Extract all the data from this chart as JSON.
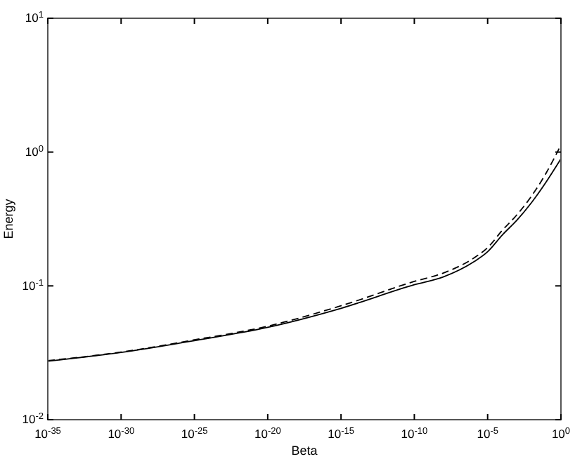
{
  "chart_data": {
    "type": "line",
    "xlabel": "Beta",
    "ylabel": "Energy",
    "log": "xy",
    "grid": false,
    "marker": "none",
    "x": [
      1e-35,
      1e-30,
      1e-25,
      1e-20,
      1e-15,
      1e-10,
      1e-08,
      1e-06,
      1e-05,
      0.0001,
      0.001,
      0.01,
      0.1,
      1
    ],
    "series": [
      {
        "color": "#000000",
        "line_style": "solid",
        "values": [
          0.0274,
          0.0318,
          0.039,
          0.049,
          0.068,
          0.102,
          0.117,
          0.15,
          0.18,
          0.24,
          0.31,
          0.42,
          0.6,
          0.89
        ]
      },
      {
        "color": "#000000",
        "line_style": "dashed",
        "values": [
          0.0276,
          0.032,
          0.0395,
          0.05,
          0.071,
          0.108,
          0.125,
          0.16,
          0.193,
          0.26,
          0.34,
          0.47,
          0.7,
          1.13
        ]
      }
    ],
    "xlim": [
      1e-35,
      1
    ],
    "xticks": [
      {
        "value": 1e-35,
        "label": "10$^{-35}$"
      },
      {
        "value": 1e-30,
        "label": "10$^{-30}$"
      },
      {
        "value": 1e-25,
        "label": "10$^{-25}$"
      },
      {
        "value": 1e-20,
        "label": "10$^{-20}$"
      },
      {
        "value": 1e-15,
        "label": "10$^{-15}$"
      },
      {
        "value": 1e-10,
        "label": "10$^{-10}$"
      },
      {
        "value": 1e-05,
        "label": "10$^{-5}$"
      },
      {
        "value": 1,
        "label": "10$^{0}$"
      }
    ],
    "ylim": [
      0.01,
      10
    ],
    "yticks": [
      {
        "value": 0.01,
        "label": "10$^{-2}$"
      },
      {
        "value": 0.1,
        "label": "10$^{-1}$"
      },
      {
        "value": 1,
        "label": "10$^{0}$"
      },
      {
        "value": 10,
        "label": "10$^{1}$"
      }
    ]
  }
}
